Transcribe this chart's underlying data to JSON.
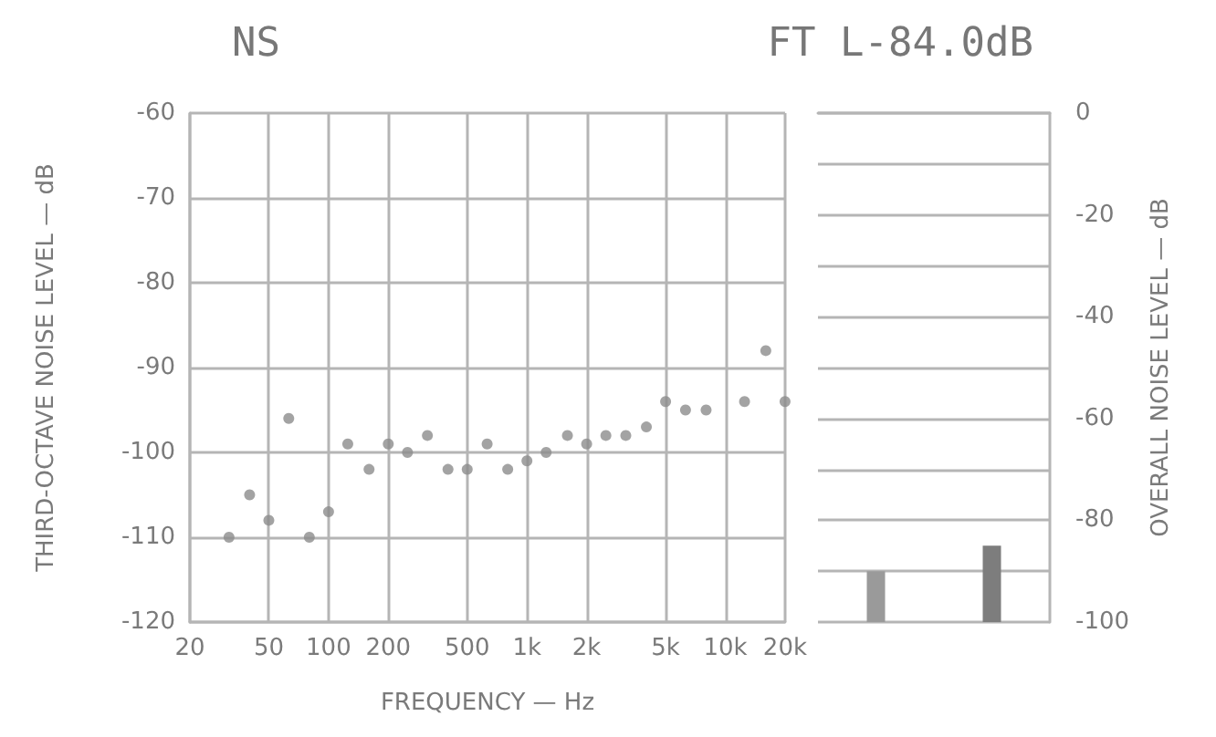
{
  "chart_data": [
    {
      "type": "scatter",
      "title": "NS",
      "xlabel": "FREQUENCY — Hz",
      "ylabel": "THIRD-OCTAVE NOISE LEVEL — dB",
      "color": "#8c8c8c",
      "x": [
        31.5,
        40,
        50,
        63,
        80,
        100,
        125,
        160,
        200,
        250,
        315,
        400,
        500,
        630,
        800,
        1000,
        1250,
        1600,
        2000,
        2500,
        3150,
        4000,
        5000,
        6300,
        8000,
        12500,
        16000,
        20000
      ],
      "values": [
        -110,
        -105,
        -108,
        -96,
        -110,
        -107,
        -99,
        -102,
        -99,
        -100,
        -98,
        -102,
        -102,
        -99,
        -102,
        -101,
        -100,
        -98,
        -99,
        -98,
        -98,
        -97,
        -94,
        -95,
        -95,
        -94,
        -88,
        -94
      ],
      "xlim": [
        20,
        20000
      ],
      "ylim": [
        -120,
        -60
      ],
      "log": "x",
      "marker": "circle",
      "xticks": [
        20,
        50,
        100,
        200,
        500,
        {
          "value": 1000,
          "label": "1k"
        },
        {
          "value": 2000,
          "label": "2k"
        },
        {
          "value": 5000,
          "label": "5k"
        },
        {
          "value": 10000,
          "label": "10k"
        },
        {
          "value": 20000,
          "label": "20k"
        }
      ],
      "yticks": [
        -120,
        -110,
        -100,
        -90,
        -80,
        -70,
        -60
      ],
      "grid": true
    },
    {
      "type": "bar",
      "title": "FT L-84.0dB",
      "ylabel": "OVERALL NOISE LEVEL — dB",
      "categories": [
        null,
        null
      ],
      "base": [
        -100,
        -100
      ],
      "values": [
        10,
        15
      ],
      "colors": [
        "#9a9a9a",
        "#7d7d7d"
      ],
      "ylim": [
        -100,
        0
      ],
      "yticks": [
        -100,
        {
          "value": -90,
          "label": null
        },
        -80,
        {
          "value": -70,
          "label": null
        },
        -60,
        {
          "value": -50,
          "label": null
        },
        -40,
        {
          "value": -30,
          "label": null
        },
        -20,
        {
          "value": -10,
          "label": null
        },
        0
      ],
      "grid": "y",
      "tick_labels": "y"
    }
  ]
}
